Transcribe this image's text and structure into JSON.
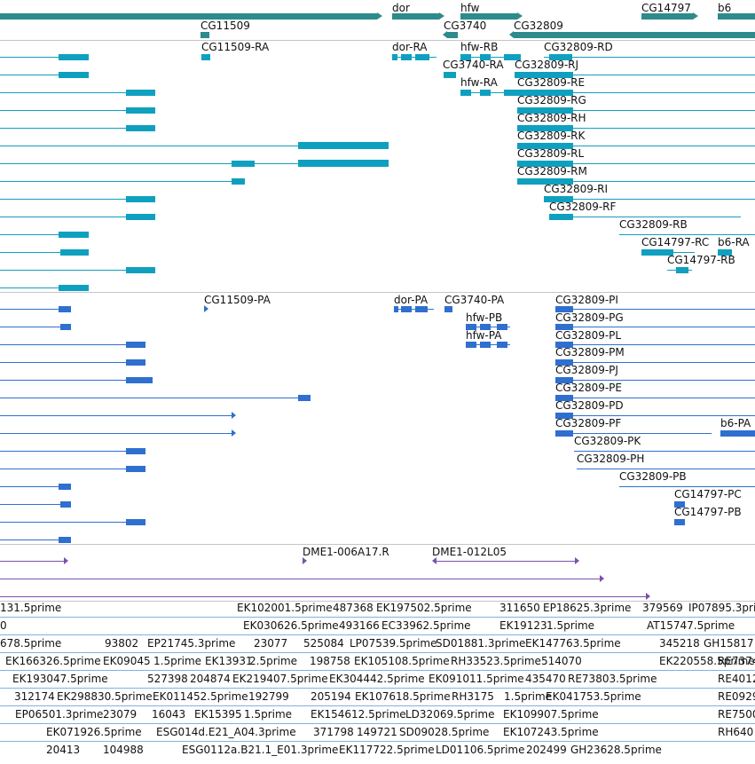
{
  "colors": {
    "gene": "#2e8b8b",
    "transcript": "#0fa0bf",
    "protein": "#2f6fcf",
    "clone": "#7b4fb0",
    "est": "#7fb2e0",
    "separator": "#c6c6c6"
  },
  "genes_track": {
    "labels": [
      "dor",
      "hfw",
      "CG14797",
      "b6",
      "CG11509",
      "CG3740",
      "CG32809"
    ]
  },
  "transcripts_track": {
    "labels": [
      "CG11509-RA",
      "dor-RA",
      "hfw-RB",
      "CG32809-RD",
      "CG3740-RA",
      "CG32809-RJ",
      "hfw-RA",
      "CG32809-RE",
      "CG32809-RG",
      "CG32809-RH",
      "CG32809-RK",
      "CG32809-RL",
      "CG32809-RM",
      "CG32809-RI",
      "CG32809-RF",
      "CG32809-RB",
      "CG14797-RC",
      "b6-RA",
      "CG14797-RB"
    ]
  },
  "proteins_track": {
    "labels": [
      "CG11509-PA",
      "dor-PA",
      "CG3740-PA",
      "CG32809-PI",
      "hfw-PB",
      "CG32809-PG",
      "hfw-PA",
      "CG32809-PL",
      "CG32809-PM",
      "CG32809-PJ",
      "CG32809-PE",
      "CG32809-PD",
      "CG32809-PF",
      "b6-PA",
      "CG32809-PK",
      "CG32809-PH",
      "CG32809-PB",
      "CG14797-PC",
      "CG14797-PB"
    ]
  },
  "clones_track": {
    "labels": [
      "DME1-006A17.R",
      "DME1-012L05"
    ]
  },
  "est_track": {
    "labels": [
      "131.5prime",
      "EK102001.5prime",
      "487368",
      "EK197502.5prime",
      "311650",
      "EP18625.3prime",
      "379569",
      "IP07895.3prime",
      "0",
      "EK030626.5prime",
      "493166",
      "EC33962.5prime",
      "EK19123",
      "1.5prime",
      "AT15747.5prime",
      "678.5prime",
      "93802",
      "EP21745.3prime",
      "23077",
      "525084",
      "LP07539.5prime",
      "SD01881.3prime",
      "EK147763.5prime",
      "345218",
      "GH15817",
      "EK166326.5prime",
      "EK09045",
      "1.5prime",
      "EK13931",
      "2.5prime",
      "198758",
      "EK105108.5prime",
      "RH33523.5prime",
      "514070",
      "EK220558.5prime",
      "RE7374",
      "EK193047.5prime",
      "527398",
      "204874",
      "EK219407.5prime",
      "EK304442.5prime",
      "EK091011.5prime",
      "435470",
      "RE73803.5prime",
      "RE4012",
      "312174",
      "EK298830.5prime",
      "EK011452.5prime",
      "192799",
      "205194",
      "EK107618.5prime",
      "RH3175",
      "1.5prime",
      "EK041753.5prime",
      "RE0929",
      "EP06501.3prime",
      "23079",
      "16043",
      "EK15395",
      "1.5prime",
      "EK154612.5prime",
      "LD32069.5prime",
      "EK109907.5prime",
      "RE7500",
      "EK071926.5prime",
      "ESG014d.E21_A04.3prime",
      "371798",
      "149721",
      "SD09028.5prime",
      "EK107243.5prime",
      "RH640",
      "20413",
      "104988",
      "ESG0112a.B21.1_E01.3prime",
      "EK117722.5prime",
      "LD01106.5prime",
      "202499",
      "GH23628.5prime"
    ]
  }
}
